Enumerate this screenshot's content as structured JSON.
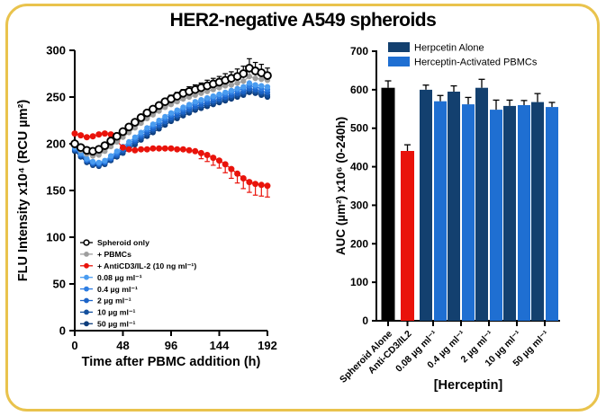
{
  "title": "HER2-negative A549 spheroids",
  "colors": {
    "frame": "#e9c34d",
    "background": "#ffffff",
    "text": "#000000"
  },
  "chart_data": [
    {
      "type": "line",
      "title": "",
      "xlabel": "Time after PBMC addition (h)",
      "ylabel": "FLU Intensity x10⁴ (RCU µm²)",
      "xlim": [
        0,
        192
      ],
      "ylim": [
        0,
        300
      ],
      "xticks": [
        0,
        48,
        96,
        144,
        192
      ],
      "yticks": [
        0,
        50,
        100,
        150,
        200,
        250,
        300
      ],
      "grid": false,
      "legend_position": "lower-left",
      "x": [
        0,
        6,
        12,
        18,
        24,
        30,
        36,
        42,
        48,
        54,
        60,
        66,
        72,
        78,
        84,
        90,
        96,
        102,
        108,
        114,
        120,
        126,
        132,
        138,
        144,
        150,
        156,
        162,
        168,
        174,
        180,
        186,
        192
      ],
      "series": [
        {
          "name": "Spheroid only",
          "color": "#000000",
          "marker": "open-circle",
          "err_dir": "up",
          "values": [
            200,
            196,
            193,
            192,
            194,
            198,
            203,
            208,
            213,
            218,
            223,
            228,
            233,
            237,
            241,
            245,
            248,
            251,
            254,
            256,
            258,
            260,
            262,
            264,
            266,
            268,
            270,
            272,
            275,
            281,
            278,
            276,
            273
          ],
          "err": [
            0,
            0,
            0,
            0,
            0,
            0,
            0,
            0,
            0,
            0,
            0,
            0,
            0,
            0,
            0,
            0,
            4,
            4,
            4,
            5,
            5,
            5,
            6,
            6,
            6,
            7,
            7,
            8,
            8,
            10,
            9,
            9,
            8
          ]
        },
        {
          "name": "+ PBMCs",
          "color": "#9e9e9e",
          "marker": "circle",
          "err_dir": "up",
          "values": [
            198,
            193,
            189,
            187,
            188,
            192,
            197,
            202,
            207,
            212,
            217,
            222,
            227,
            231,
            235,
            239,
            242,
            245,
            248,
            250,
            252,
            254,
            256,
            258,
            260,
            262,
            263,
            265,
            267,
            272,
            270,
            269,
            268
          ],
          "err": [
            0,
            0,
            0,
            0,
            0,
            0,
            0,
            0,
            0,
            0,
            0,
            0,
            0,
            0,
            0,
            0,
            0,
            0,
            0,
            0,
            0,
            0,
            0,
            0,
            0,
            0,
            0,
            0,
            5,
            6,
            5,
            5,
            5
          ]
        },
        {
          "name": "+ AntiCD3/IL-2 (10 ng ml⁻¹)",
          "color": "#e9130b",
          "marker": "circle",
          "err_dir": "down",
          "values": [
            211,
            209,
            207,
            208,
            210,
            211,
            210,
            203,
            196,
            194,
            193,
            194,
            194,
            195,
            195,
            195,
            195,
            194,
            194,
            193,
            192,
            190,
            188,
            185,
            182,
            178,
            173,
            168,
            163,
            159,
            157,
            156,
            155
          ],
          "err": [
            0,
            0,
            0,
            0,
            0,
            0,
            0,
            0,
            0,
            0,
            0,
            0,
            0,
            0,
            0,
            0,
            0,
            0,
            0,
            0,
            0,
            6,
            7,
            8,
            8,
            9,
            10,
            10,
            11,
            11,
            12,
            12,
            12
          ]
        },
        {
          "name": "0.08 µg ml⁻¹",
          "color": "#4a9cf0",
          "marker": "circle",
          "err_dir": "up",
          "values": [
            196,
            190,
            184,
            181,
            180,
            182,
            187,
            192,
            197,
            202,
            207,
            212,
            217,
            221,
            225,
            229,
            233,
            236,
            239,
            242,
            245,
            247,
            249,
            251,
            253,
            255,
            257,
            259,
            261,
            265,
            263,
            262,
            261
          ]
        },
        {
          "name": "0.4 µg ml⁻¹",
          "color": "#2d7de2",
          "marker": "circle",
          "err_dir": "up",
          "values": [
            195,
            189,
            183,
            180,
            179,
            181,
            185,
            190,
            195,
            200,
            205,
            210,
            215,
            219,
            223,
            227,
            231,
            234,
            237,
            240,
            243,
            245,
            247,
            249,
            251,
            253,
            255,
            257,
            259,
            262,
            261,
            259,
            258
          ]
        },
        {
          "name": "2 µg ml⁻¹",
          "color": "#1c64c8",
          "marker": "circle",
          "err_dir": "up",
          "values": [
            194,
            188,
            182,
            179,
            178,
            180,
            184,
            188,
            193,
            198,
            203,
            208,
            212,
            216,
            220,
            224,
            228,
            231,
            234,
            237,
            240,
            242,
            244,
            246,
            248,
            250,
            252,
            254,
            256,
            259,
            258,
            256,
            255
          ]
        },
        {
          "name": "10 µg ml⁻¹",
          "color": "#14509e",
          "marker": "circle",
          "err_dir": "up",
          "values": [
            193,
            187,
            181,
            178,
            177,
            179,
            183,
            187,
            191,
            196,
            201,
            206,
            210,
            214,
            218,
            222,
            226,
            229,
            232,
            235,
            238,
            240,
            242,
            244,
            246,
            248,
            250,
            252,
            254,
            257,
            256,
            254,
            252
          ]
        },
        {
          "name": "50 µg ml⁻¹",
          "color": "#0e3d7c",
          "marker": "circle",
          "err_dir": "up",
          "values": [
            192,
            186,
            180,
            177,
            176,
            178,
            182,
            186,
            190,
            194,
            199,
            204,
            208,
            212,
            216,
            220,
            224,
            227,
            230,
            233,
            236,
            238,
            240,
            242,
            244,
            246,
            248,
            250,
            252,
            255,
            254,
            252,
            250
          ]
        }
      ]
    },
    {
      "type": "bar",
      "title": "",
      "xlabel": "[Herceptin]",
      "ylabel": "AUC (µm²) x10⁶ (0-240h)",
      "ylim": [
        0,
        700
      ],
      "yticks": [
        0,
        100,
        200,
        300,
        400,
        500,
        600,
        700
      ],
      "grid": false,
      "legend_position": "upper-left",
      "legend": [
        {
          "label": "Herpcetin Alone",
          "color": "#13406f"
        },
        {
          "label": "Herceptin-Activated PBMCs",
          "color": "#1f6fd2"
        }
      ],
      "groups": [
        {
          "label": "Spheroid Alone",
          "bars": [
            {
              "color": "#000000",
              "value": 605,
              "err": 18
            }
          ]
        },
        {
          "label": "Anti-CD3/IL2",
          "bars": [
            {
              "color": "#e9130b",
              "value": 441,
              "err": 16
            }
          ]
        },
        {
          "label": "0.08 µg ml⁻¹",
          "bars": [
            {
              "color": "#13406f",
              "value": 600,
              "err": 12
            },
            {
              "color": "#1f6fd2",
              "value": 570,
              "err": 15
            }
          ]
        },
        {
          "label": "0.4 µg ml⁻¹",
          "bars": [
            {
              "color": "#13406f",
              "value": 595,
              "err": 15
            },
            {
              "color": "#1f6fd2",
              "value": 562,
              "err": 18
            }
          ]
        },
        {
          "label": "2 µg ml⁻¹",
          "bars": [
            {
              "color": "#13406f",
              "value": 605,
              "err": 22
            },
            {
              "color": "#1f6fd2",
              "value": 548,
              "err": 25
            }
          ]
        },
        {
          "label": "10 µg ml⁻¹",
          "bars": [
            {
              "color": "#13406f",
              "value": 558,
              "err": 15
            },
            {
              "color": "#1f6fd2",
              "value": 560,
              "err": 12
            }
          ]
        },
        {
          "label": "50 µg ml⁻¹",
          "bars": [
            {
              "color": "#13406f",
              "value": 568,
              "err": 22
            },
            {
              "color": "#1f6fd2",
              "value": 555,
              "err": 12
            }
          ]
        }
      ]
    }
  ]
}
